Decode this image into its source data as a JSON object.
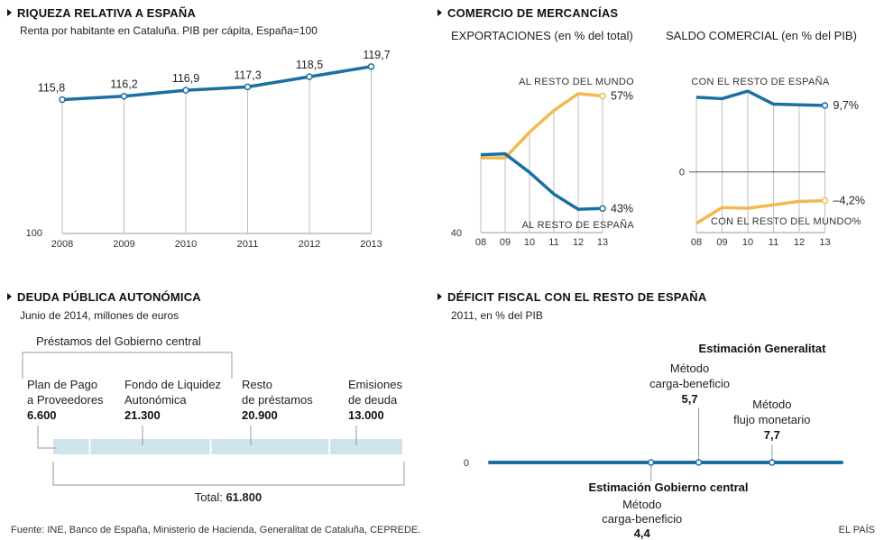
{
  "riqueza": {
    "title": "RIQUEZA RELATIVA A ESPAÑA",
    "subtitle": "Renta por habitante en Cataluña. PIB per cápita, España=100",
    "chart_data": {
      "type": "line",
      "x": [
        "2008",
        "2009",
        "2010",
        "2011",
        "2012",
        "2013"
      ],
      "values": [
        115.8,
        116.2,
        116.9,
        117.3,
        118.5,
        119.7
      ],
      "value_labels": [
        "115,8",
        "116,2",
        "116,9",
        "117,3",
        "118,5",
        "119,7"
      ],
      "ylim": [
        100,
        120
      ],
      "ytick_label": "100",
      "series_color": "#1a6fa3"
    }
  },
  "comercio": {
    "title": "COMERCIO DE MERCANCÍAS",
    "export_subtitle": "EXPORTACIONES (en % del total)",
    "saldo_subtitle": "SALDO COMERCIAL (en % del PIB)",
    "exportaciones": {
      "type": "line",
      "x": [
        "08",
        "09",
        "10",
        "11",
        "12",
        "13"
      ],
      "ylim": [
        40,
        60
      ],
      "ytick_label": "40",
      "series": [
        {
          "name": "AL RESTO DEL MUNDO",
          "values": [
            49.3,
            49.3,
            52.5,
            55.2,
            57.3,
            57.0
          ],
          "end_label": "57%",
          "color": "#f2b950"
        },
        {
          "name": "AL RESTO DE ESPAÑA",
          "values": [
            49.7,
            49.8,
            47.5,
            44.8,
            42.9,
            43.0
          ],
          "end_label": "43%",
          "color": "#1a6fa3"
        }
      ]
    },
    "saldo": {
      "type": "line",
      "x": [
        "08",
        "09",
        "10",
        "11",
        "12",
        "13"
      ],
      "ylim": [
        -7.8,
        12.6
      ],
      "zero_label": "0",
      "series": [
        {
          "name": "CON EL RESTO DE ESPAÑA",
          "values": [
            10.9,
            10.7,
            11.8,
            9.9,
            9.8,
            9.7
          ],
          "end_label": "9,7%",
          "color": "#1a6fa3"
        },
        {
          "name": "CON EL RESTO DEL MUNDO",
          "values": [
            -7.5,
            -5.2,
            -5.3,
            -4.8,
            -4.3,
            -4.2
          ],
          "end_label": "–4,2%",
          "label_suffix": "%",
          "color": "#f2b950"
        }
      ]
    }
  },
  "deuda": {
    "title": "DEUDA PÚBLICA AUTONÓMICA",
    "subtitle": "Junio de 2014, millones de euros",
    "group_label": "Préstamos del Gobierno central",
    "total_label": "Total: ",
    "total_value": "61.800",
    "chart_data": {
      "type": "bar",
      "segments": [
        {
          "label_lines": [
            "Plan de Pago",
            "a Proveedores"
          ],
          "value": 6600,
          "value_label": "6.600"
        },
        {
          "label_lines": [
            "Fondo de Liquidez",
            "Autonómica"
          ],
          "value": 21300,
          "value_label": "21.300"
        },
        {
          "label_lines": [
            "Resto",
            "de préstamos"
          ],
          "value": 20900,
          "value_label": "20.900"
        },
        {
          "label_lines": [
            "Emisiones",
            "de deuda"
          ],
          "value": 13000,
          "value_label": "13.000"
        }
      ],
      "bar_color": "#cfe3ec"
    }
  },
  "deficit": {
    "title": "DÉFICIT FISCAL CON EL RESTO DE ESPAÑA",
    "subtitle": "2011, en % del PIB",
    "zero_label": "0",
    "chart_data": {
      "type": "scatter",
      "xlim": [
        0,
        9.6
      ],
      "generalitat_label": "Estimación Generalitat",
      "gobierno_label": "Estimación Gobierno central",
      "points": [
        {
          "group": "gobierno",
          "label_lines": [
            "Método",
            "carga-beneficio"
          ],
          "value": 4.4,
          "value_label": "4,4"
        },
        {
          "group": "generalitat",
          "label_lines": [
            "Método",
            "carga-beneficio"
          ],
          "value": 5.7,
          "value_label": "5,7"
        },
        {
          "group": "generalitat",
          "label_lines": [
            "Método",
            "flujo monetario"
          ],
          "value": 7.7,
          "value_label": "7,7"
        }
      ],
      "line_color": "#1a6fa3"
    }
  },
  "footer": {
    "source": "Fuente: INE, Banco de España, Ministerio de Hacienda, Generalitat de Cataluña, CEPREDE.",
    "brand": "EL PAÍS"
  }
}
